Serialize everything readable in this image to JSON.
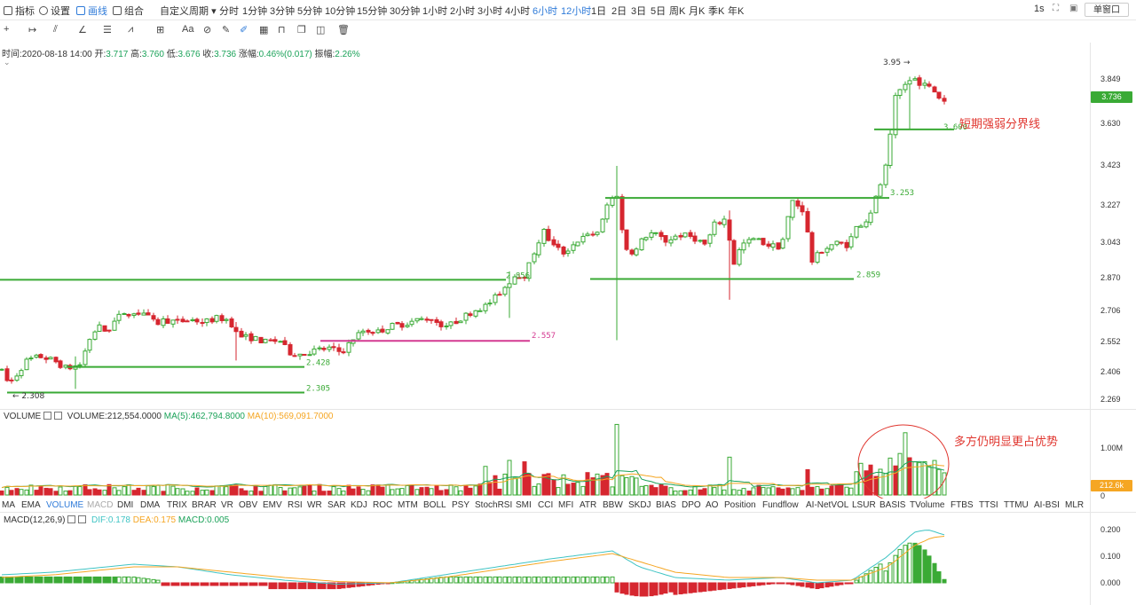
{
  "toolbar": {
    "indicators_label": "指标",
    "settings_label": "设置",
    "draw_label": "画线",
    "combo_label": "组合",
    "custom_period_label": "自定义周期",
    "periods": [
      "分时",
      "1分钟",
      "3分钟",
      "5分钟",
      "10分钟",
      "15分钟",
      "30分钟",
      "1小时",
      "2小时",
      "3小时",
      "4小时",
      "6小时",
      "12小时",
      "1日",
      "2日",
      "3日",
      "5日",
      "周K",
      "月K",
      "季K",
      "年K"
    ],
    "selected_periods": [
      "6小时",
      "12小时"
    ],
    "refresh_label": "1s",
    "window_label": "单窗口"
  },
  "draw_toolbar": {
    "tools": [
      "crosshair-icon",
      "horizontal-ray-icon",
      "trend-line-icon",
      "angle-icon",
      "parallel-lines-icon",
      "wave-icon",
      "measure-icon",
      "text-icon",
      "magnet-icon",
      "ruler-icon",
      "pen-icon",
      "pattern-icon",
      "lock-icon",
      "copy-icon",
      "visibility-icon",
      "trash-icon"
    ],
    "text_tool_label": "Aa"
  },
  "ohlc": {
    "time": "时间:2020-08-18 14:00",
    "open_label": "开:",
    "open": "3.717",
    "high_label": "高:",
    "high": "3.760",
    "low_label": "低:",
    "low": "3.676",
    "close_label": "收:",
    "close": "3.736",
    "change_label": "涨幅:",
    "change": "0.46%(0.017)",
    "amp_label": "振幅:",
    "amp": "2.26%"
  },
  "price_axis": {
    "ticks": [
      "3.849",
      "3.630",
      "3.423",
      "3.227",
      "3.043",
      "2.870",
      "2.706",
      "2.552",
      "2.406",
      "2.269"
    ],
    "current": "3.736"
  },
  "annotations": {
    "lines": [
      {
        "label": "3.600",
        "color": "#3aaa35"
      },
      {
        "label": "3.253",
        "color": "#3aaa35"
      },
      {
        "label": "2.859",
        "color": "#3aaa35"
      },
      {
        "label": "2.856",
        "color": "#3aaa35"
      },
      {
        "label": "2.557",
        "color": "#d43a91"
      },
      {
        "label": "2.428",
        "color": "#3aaa35"
      },
      {
        "label": "2.305",
        "color": "#3aaa35"
      }
    ],
    "high_marker": "3.95",
    "low_marker": "2.308",
    "divider_note": "短期强弱分界线",
    "volume_note": "多方仍明显更占优势"
  },
  "volume": {
    "name": "VOLUME",
    "value": "VOLUME:212,554.0000",
    "ma5": "MA(5):462,794.8000",
    "ma10": "MA(10):569,091.7000",
    "axis_top": "1.00M",
    "axis_zero": "0",
    "current": "212.6k",
    "ma5_color": "#1ba259",
    "ma10_color": "#f5a623"
  },
  "indicators": [
    "MA",
    "EMA",
    "VOLUME",
    "MACD",
    "DMI",
    "DMA",
    "TRIX",
    "BRAR",
    "VR",
    "OBV",
    "EMV",
    "RSI",
    "WR",
    "SAR",
    "KDJ",
    "ROC",
    "MTM",
    "BOLL",
    "PSY",
    "StochRSI",
    "SMI",
    "CCI",
    "MFI",
    "ATR",
    "BBW",
    "SKDJ",
    "BIAS",
    "DPO",
    "AO",
    "Position",
    "Fundflow",
    "AI-NetVOL",
    "LSUR",
    "BASIS",
    "TVolume",
    "FTBS",
    "TTSI",
    "TTMU",
    "AI-BSI",
    "MLR"
  ],
  "active_indicator": "VOLUME",
  "dim_indicator": "MACD",
  "macd": {
    "name": "MACD(12,26,9)",
    "dif": "DIF:0.178",
    "dea": "DEA:0.175",
    "macd": "MACD:0.005",
    "ticks": [
      "0.200",
      "0.100",
      "0.000"
    ],
    "dif_color": "#40c4c4",
    "dea_color": "#f5a623"
  },
  "colors": {
    "up": "#3aaa35",
    "down": "#d6262f",
    "accent": "#2f7bd9"
  }
}
